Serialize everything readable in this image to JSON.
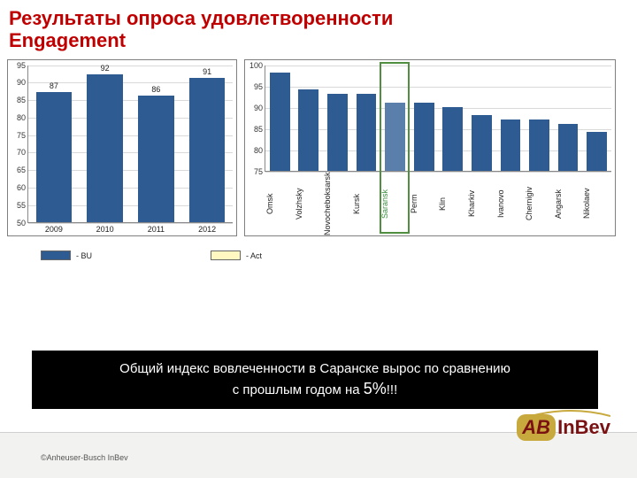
{
  "title_line1": "Результаты опроса удовлетворенности",
  "title_line2": "Engagement",
  "left_chart": {
    "type": "bar",
    "ylim": [
      50,
      95
    ],
    "ytick_step": 5,
    "bar_color": "#2f5b93",
    "grid_color": "#d9d9d9",
    "border_color": "#7f7f7f",
    "label_fontsize": 9,
    "bar_width_pct": 70,
    "categories": [
      "2009",
      "2010",
      "2011",
      "2012"
    ],
    "values": [
      87,
      92,
      86,
      91
    ]
  },
  "right_chart": {
    "type": "bar",
    "ylim": [
      75,
      100
    ],
    "ytick_step": 5,
    "bar_color": "#2f5b93",
    "highlight_bar_color": "#5a7fab",
    "highlight_label_color": "#3b8f3f",
    "grid_color": "#d9d9d9",
    "border_color": "#7f7f7f",
    "highlight_border_color": "#4f8f3f",
    "highlight_index": 4,
    "label_fontsize": 9,
    "bar_width_pct": 70,
    "categories": [
      "Omsk",
      "Volzhsky",
      "Novocheboksarsk",
      "Kursk",
      "Saransk",
      "Perm",
      "Klin",
      "Kharkiv",
      "Ivanovo",
      "Chernigiv",
      "Angarsk",
      "Nikolaev"
    ],
    "values": [
      98,
      94,
      93,
      93,
      91,
      91,
      90,
      88,
      87,
      87,
      86,
      84
    ]
  },
  "legend": {
    "bu_color": "#2f5b93",
    "act_color": "#fff8c0",
    "bu_label": "- BU",
    "act_label": "- Act"
  },
  "callout": {
    "line1_a": "Общий индекс вовлеченности в Саранске  вырос по сравнению",
    "line2_a": "с прошлым годом на ",
    "pct": "5%",
    "line2_b": "!!!",
    "bg_color": "#000000",
    "text_color": "#ffffff"
  },
  "footer": {
    "copyright": "©Anheuser-Busch InBev",
    "logo_ab": "AB",
    "logo_inbev": "InBev"
  }
}
